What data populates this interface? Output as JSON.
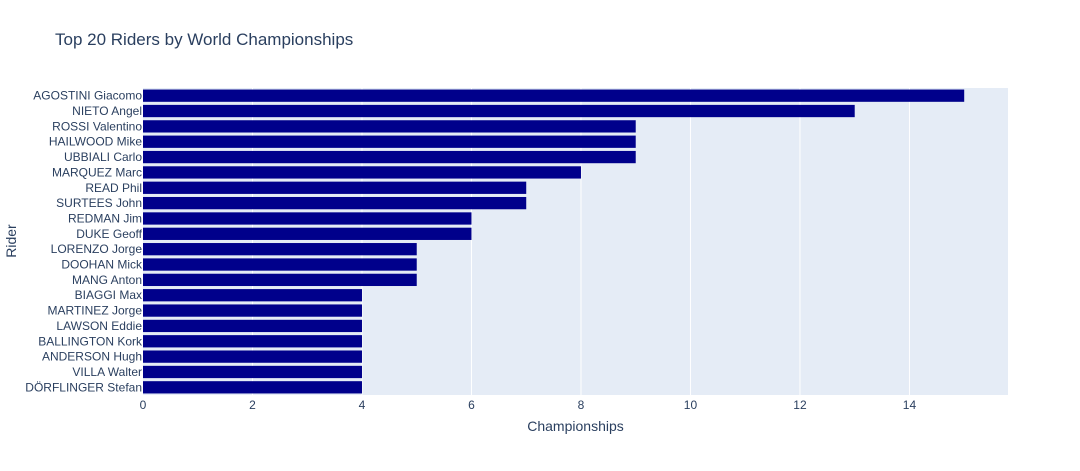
{
  "chart_data": {
    "type": "bar",
    "orientation": "horizontal",
    "title": "Top 20 Riders by World Championships",
    "xlabel": "Championships",
    "ylabel": "Rider",
    "xlim": [
      0,
      15.8
    ],
    "xticks": [
      0,
      2,
      4,
      6,
      8,
      10,
      12,
      14
    ],
    "grid": true,
    "legend": "none",
    "colors": {
      "bar": "#00008b",
      "plot_bg": "#e5ecf6",
      "grid": "#ffffff",
      "text": "#2a3f5f",
      "title": "#2a3f5f"
    },
    "categories": [
      "AGOSTINI Giacomo",
      "NIETO Angel",
      "ROSSI Valentino",
      "HAILWOOD Mike",
      "UBBIALI Carlo",
      "MARQUEZ Marc",
      "READ Phil",
      "SURTEES John",
      "REDMAN Jim",
      "DUKE Geoff",
      "LORENZO Jorge",
      "DOOHAN Mick",
      "MANG Anton",
      "BIAGGI Max",
      "MARTINEZ Jorge",
      "LAWSON Eddie",
      "BALLINGTON Kork",
      "ANDERSON Hugh",
      "VILLA Walter",
      "DÖRFLINGER Stefan"
    ],
    "values": [
      15,
      13,
      9,
      9,
      9,
      8,
      7,
      7,
      6,
      6,
      5,
      5,
      5,
      4,
      4,
      4,
      4,
      4,
      4,
      4
    ]
  }
}
